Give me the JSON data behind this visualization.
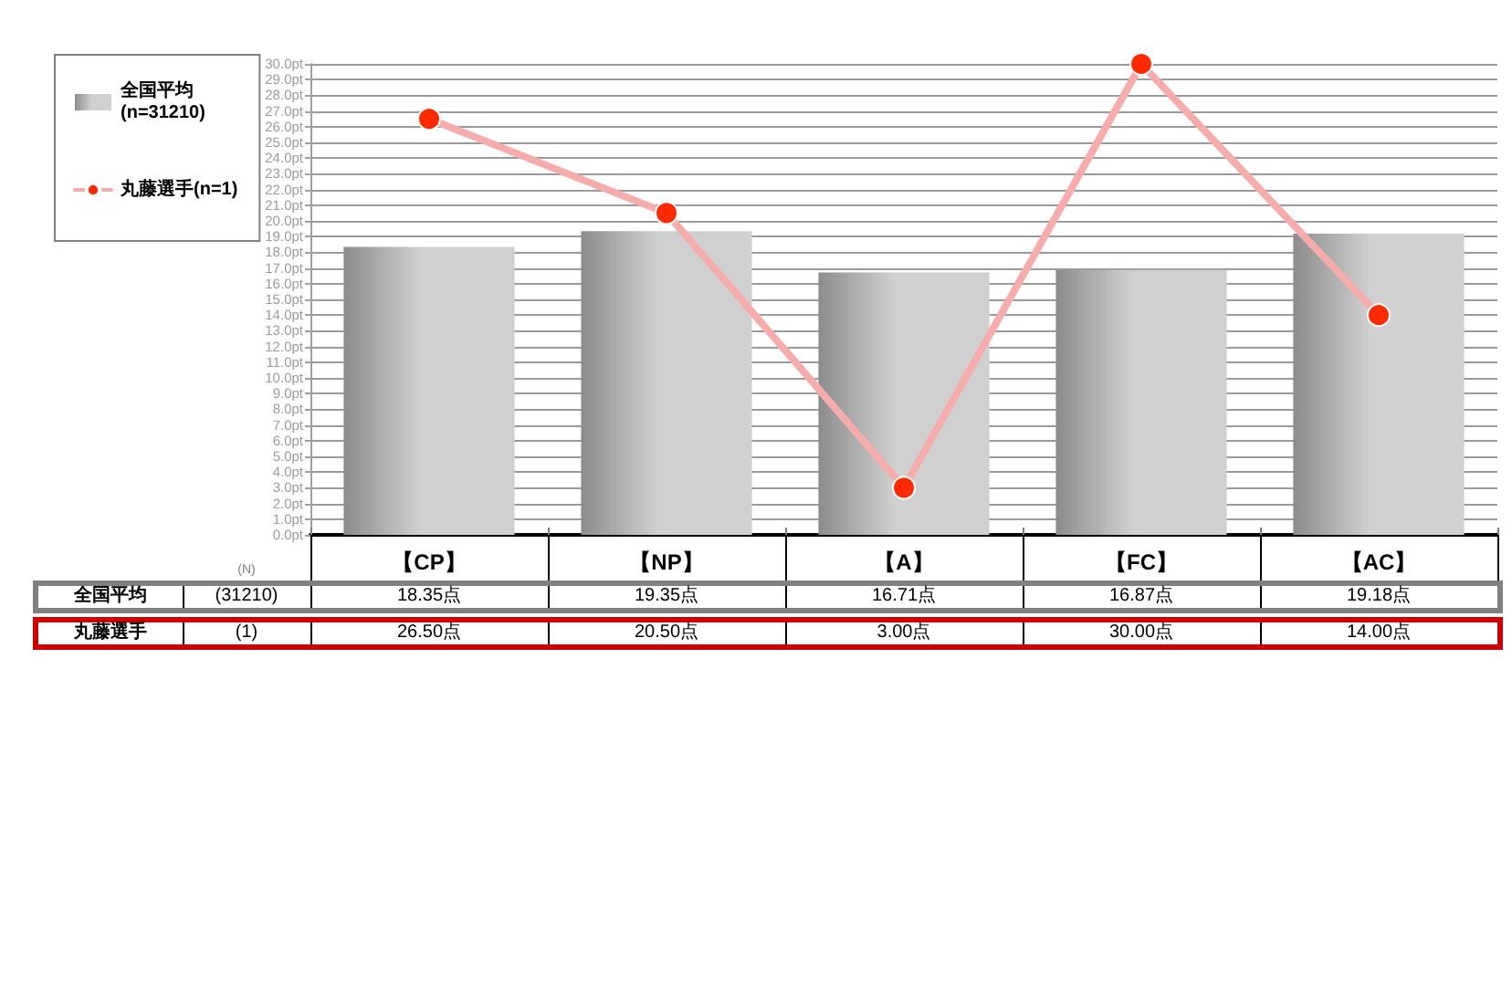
{
  "chart_data": {
    "type": "bar",
    "categories": [
      "【CP】",
      "【NP】",
      "【A】",
      "【FC】",
      "【AC】"
    ],
    "series": [
      {
        "name": "全国平均\n(n=31210)",
        "color": "#c8c8c8",
        "values": [
          18.35,
          19.35,
          16.71,
          16.87,
          19.18
        ],
        "value_labels": [
          "18.35点",
          "19.35点",
          "16.71点",
          "16.87点",
          "19.18点"
        ]
      },
      {
        "name": "丸藤選手(n=1)",
        "type": "line",
        "color": "#f7acac",
        "colors": [
          "#ff2a00",
          "#ff2a00",
          "#ff2a00",
          "#ff2a00",
          "#ff2a00"
        ],
        "values": [
          26.5,
          20.5,
          3.0,
          30.0,
          14.0
        ],
        "value_labels": [
          "26.50点",
          "20.50点",
          "3.00点",
          "30.00点",
          "14.00点"
        ]
      }
    ],
    "ylim": [
      0,
      30
    ],
    "yticks": [
      {
        "value": 0,
        "label": "0.0pt"
      },
      {
        "value": 1,
        "label": "1.0pt"
      },
      {
        "value": 2,
        "label": "2.0pt"
      },
      {
        "value": 3,
        "label": "3.0pt"
      },
      {
        "value": 4,
        "label": "4.0pt"
      },
      {
        "value": 5,
        "label": "5.0pt"
      },
      {
        "value": 6,
        "label": "6.0pt"
      },
      {
        "value": 7,
        "label": "7.0pt"
      },
      {
        "value": 8,
        "label": "8.0pt"
      },
      {
        "value": 9,
        "label": "9.0pt"
      },
      {
        "value": 10,
        "label": "10.0pt"
      },
      {
        "value": 11,
        "label": "11.0pt"
      },
      {
        "value": 12,
        "label": "12.0pt"
      },
      {
        "value": 13,
        "label": "13.0pt"
      },
      {
        "value": 14,
        "label": "14.0pt"
      },
      {
        "value": 15,
        "label": "15.0pt"
      },
      {
        "value": 16,
        "label": "16.0pt"
      },
      {
        "value": 17,
        "label": "17.0pt"
      },
      {
        "value": 18,
        "label": "18.0pt"
      },
      {
        "value": 19,
        "label": "19.0pt"
      },
      {
        "value": 20,
        "label": "20.0pt"
      },
      {
        "value": 21,
        "label": "21.0pt"
      },
      {
        "value": 22,
        "label": "22.0pt"
      },
      {
        "value": 23,
        "label": "23.0pt"
      },
      {
        "value": 24,
        "label": "24.0pt"
      },
      {
        "value": 25,
        "label": "25.0pt"
      },
      {
        "value": 26,
        "label": "26.0pt"
      },
      {
        "value": 27,
        "label": "27.0pt"
      },
      {
        "value": 28,
        "label": "28.0pt"
      },
      {
        "value": 29,
        "label": "29.0pt"
      },
      {
        "value": 30,
        "label": "30.0pt"
      }
    ],
    "grid": "y",
    "legend": "top left",
    "marker": "circle",
    "line_style": "solid",
    "annotations": [
      "(N)",
      "全国平均",
      "(31210)",
      "丸藤選手",
      "(1)"
    ]
  }
}
